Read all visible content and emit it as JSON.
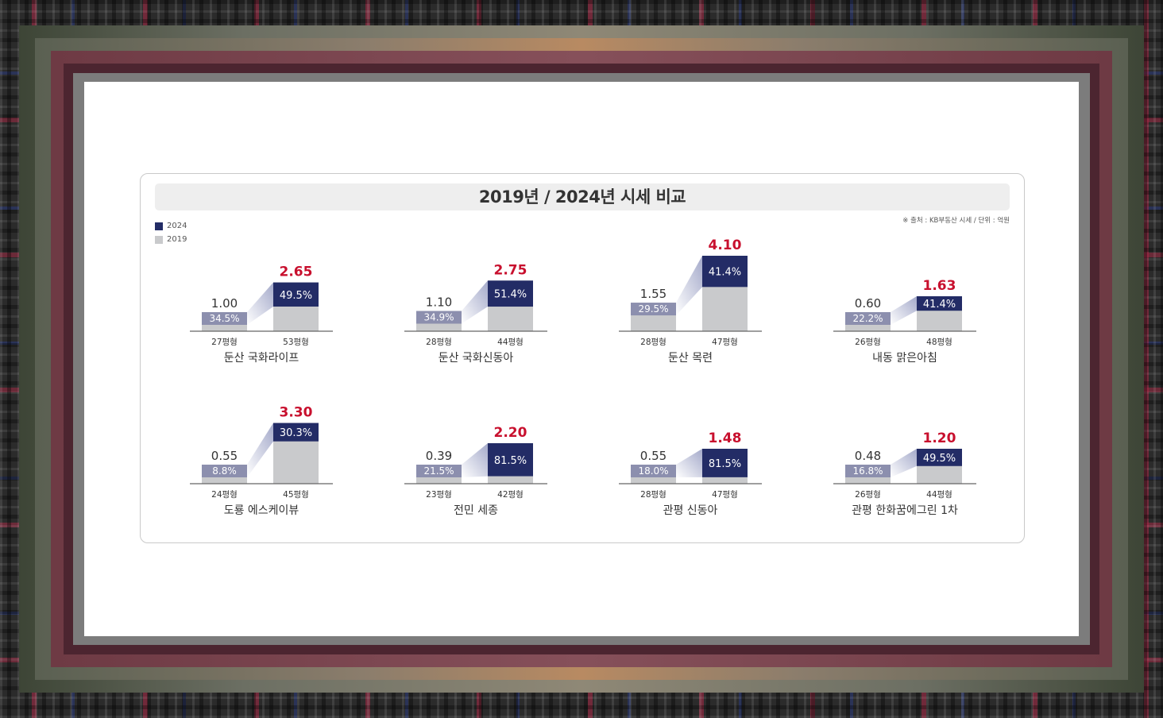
{
  "colors": {
    "bar2024": "#232c66",
    "bar2019": "#c9cacc",
    "old_share": "#8c8fae",
    "value_highlight": "#c8102e",
    "axis": "#666666"
  },
  "header": {
    "title": "2019년 / 2024년 시세 비교",
    "source": "※ 출처 : KB부동산 시세 / 단위 : 억원"
  },
  "legend": [
    {
      "label": "2024",
      "color": "#232c66"
    },
    {
      "label": "2019",
      "color": "#c9cacc"
    }
  ],
  "chart_data": {
    "type": "bar",
    "panels": [
      {
        "name": "둔산 국화라이프",
        "small_size": "27평형",
        "small_value": "1.00",
        "small_pct": "34.5%",
        "large_size": "53평형",
        "large_value": "2.65",
        "large_pct": "49.5%"
      },
      {
        "name": "둔산 국화신동아",
        "small_size": "28평형",
        "small_value": "1.10",
        "small_pct": "34.9%",
        "large_size": "44평형",
        "large_value": "2.75",
        "large_pct": "51.4%"
      },
      {
        "name": "둔산 목련",
        "small_size": "28평형",
        "small_value": "1.55",
        "small_pct": "29.5%",
        "large_size": "47평형",
        "large_value": "4.10",
        "large_pct": "41.4%"
      },
      {
        "name": "내동 맑은아침",
        "small_size": "26평형",
        "small_value": "0.60",
        "small_pct": "22.2%",
        "large_size": "48평형",
        "large_value": "1.63",
        "large_pct": "41.4%"
      },
      {
        "name": "도룡 에스케이뷰",
        "small_size": "24평형",
        "small_value": "0.55",
        "small_pct": "8.8%",
        "large_size": "45평형",
        "large_value": "3.30",
        "large_pct": "30.3%"
      },
      {
        "name": "전민 세종",
        "small_size": "23평형",
        "small_value": "0.39",
        "small_pct": "21.5%",
        "large_size": "42평형",
        "large_value": "2.20",
        "large_pct": "81.5%"
      },
      {
        "name": "관평 신동아",
        "small_size": "28평형",
        "small_value": "0.55",
        "small_pct": "18.0%",
        "large_size": "47평형",
        "large_value": "1.48",
        "large_pct": "81.5%"
      },
      {
        "name": "관평 한화꿈에그린 1차",
        "small_size": "26평형",
        "small_value": "0.48",
        "small_pct": "16.8%",
        "large_size": "44평형",
        "large_value": "1.20",
        "large_pct": "49.5%"
      }
    ]
  }
}
